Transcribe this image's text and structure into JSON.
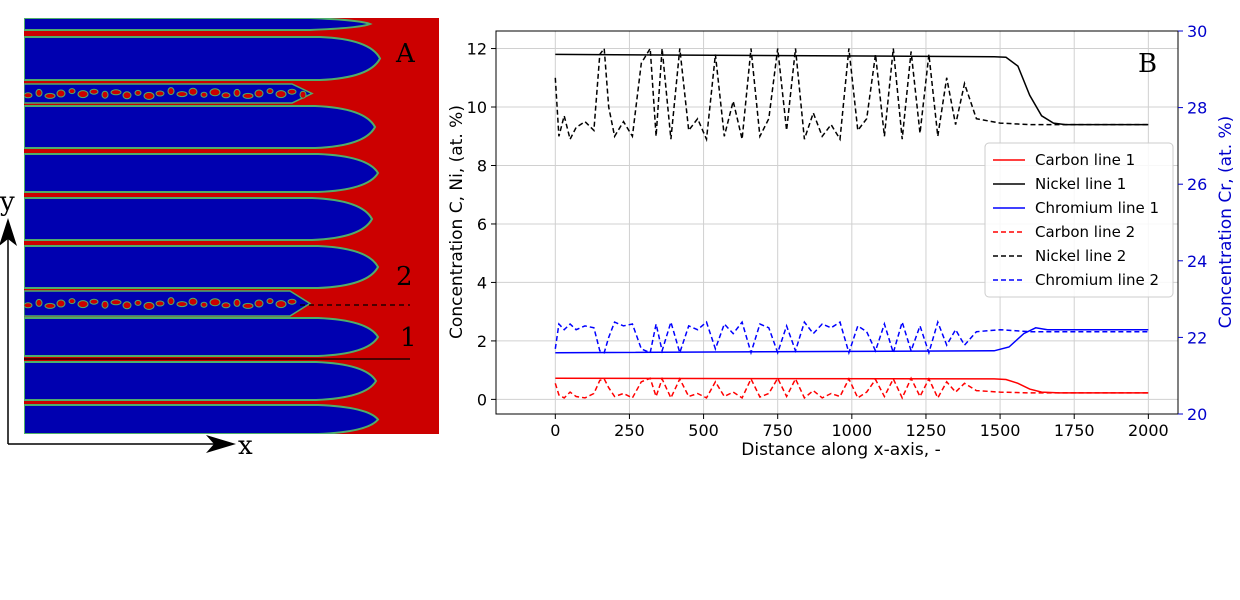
{
  "panel_a": {
    "letter": "A",
    "line2_label": "2",
    "line1_label": "1",
    "x_axis_label": "x",
    "y_axis_label": "y",
    "colors": {
      "matrix": "#0000b0",
      "phase": "#cc0000",
      "interface": "#4fae6a"
    }
  },
  "chart_data": {
    "type": "line",
    "panel_letter": "B",
    "xlabel": "Distance along x-axis, -",
    "ylabel": "Concentration C, Ni, (at. %)",
    "y2label": "Concentration Cr, (at. %)",
    "xlim": [
      -200,
      2100
    ],
    "ylim": [
      -0.5,
      12.6
    ],
    "y2lim": [
      20,
      30
    ],
    "xticks": [
      0,
      250,
      500,
      750,
      1000,
      1250,
      1500,
      1750,
      2000
    ],
    "yticks": [
      0,
      2,
      4,
      6,
      8,
      10,
      12
    ],
    "y2ticks": [
      20,
      22,
      24,
      26,
      28,
      30
    ],
    "grid": true,
    "legend_position": "right",
    "series": [
      {
        "name": "Carbon line 1",
        "color": "#ff0000",
        "style": "solid",
        "axis": "left",
        "x": [
          0,
          1480,
          1520,
          1560,
          1600,
          1640,
          1700,
          2000
        ],
        "y": [
          0.72,
          0.7,
          0.68,
          0.55,
          0.35,
          0.25,
          0.22,
          0.22
        ]
      },
      {
        "name": "Nickel line 1",
        "color": "#000000",
        "style": "solid",
        "axis": "left",
        "x": [
          0,
          1480,
          1520,
          1560,
          1600,
          1640,
          1680,
          1720,
          2000
        ],
        "y": [
          11.8,
          11.72,
          11.7,
          11.4,
          10.4,
          9.7,
          9.45,
          9.4,
          9.4
        ]
      },
      {
        "name": "Chromium line 1",
        "color": "#0000ff",
        "style": "solid",
        "axis": "right",
        "x": [
          0,
          1480,
          1530,
          1580,
          1620,
          1660,
          1700,
          2000
        ],
        "y": [
          21.6,
          21.65,
          21.75,
          22.1,
          22.25,
          22.2,
          22.2,
          22.2
        ]
      },
      {
        "name": "Carbon line 2",
        "color": "#ff0000",
        "style": "dashed",
        "axis": "left",
        "x": [
          0,
          12,
          30,
          50,
          70,
          100,
          130,
          150,
          165,
          180,
          200,
          230,
          260,
          290,
          320,
          340,
          360,
          390,
          420,
          450,
          480,
          510,
          540,
          570,
          600,
          630,
          660,
          690,
          720,
          750,
          780,
          810,
          840,
          870,
          900,
          930,
          960,
          990,
          1020,
          1050,
          1080,
          1110,
          1140,
          1170,
          1200,
          1230,
          1260,
          1290,
          1320,
          1350,
          1380,
          1420,
          1500,
          1600,
          1700,
          2000
        ],
        "y": [
          0.55,
          0.15,
          0.05,
          0.25,
          0.1,
          0.05,
          0.2,
          0.65,
          0.7,
          0.4,
          0.1,
          0.2,
          0.05,
          0.6,
          0.72,
          0.1,
          0.7,
          0.05,
          0.7,
          0.1,
          0.2,
          0.05,
          0.6,
          0.1,
          0.25,
          0.05,
          0.7,
          0.08,
          0.2,
          0.72,
          0.1,
          0.7,
          0.05,
          0.3,
          0.05,
          0.2,
          0.1,
          0.7,
          0.05,
          0.25,
          0.68,
          0.1,
          0.7,
          0.05,
          0.72,
          0.1,
          0.7,
          0.05,
          0.6,
          0.25,
          0.55,
          0.3,
          0.25,
          0.22,
          0.22,
          0.22
        ]
      },
      {
        "name": "Nickel line 2",
        "color": "#000000",
        "style": "dashed",
        "axis": "left",
        "x": [
          0,
          12,
          30,
          50,
          70,
          100,
          130,
          150,
          165,
          180,
          200,
          230,
          260,
          290,
          320,
          340,
          360,
          390,
          420,
          450,
          480,
          510,
          540,
          570,
          600,
          630,
          660,
          690,
          720,
          750,
          780,
          810,
          840,
          870,
          900,
          930,
          960,
          990,
          1020,
          1050,
          1080,
          1110,
          1140,
          1170,
          1200,
          1230,
          1260,
          1290,
          1320,
          1350,
          1380,
          1420,
          1500,
          1600,
          1700,
          2000
        ],
        "y": [
          11.0,
          9.0,
          9.7,
          8.9,
          9.3,
          9.5,
          9.2,
          11.8,
          12.0,
          10.0,
          9.0,
          9.5,
          9.0,
          11.5,
          12.0,
          9.0,
          12.0,
          8.9,
          12.0,
          9.2,
          9.6,
          8.9,
          11.8,
          9.0,
          10.2,
          8.9,
          12.0,
          9.0,
          9.6,
          12.0,
          9.2,
          12.0,
          8.9,
          9.8,
          9.0,
          9.4,
          8.9,
          12.0,
          9.2,
          9.6,
          11.8,
          9.0,
          12.0,
          8.9,
          11.9,
          9.1,
          11.8,
          9.0,
          11.0,
          9.4,
          10.8,
          9.6,
          9.45,
          9.4,
          9.4,
          9.4
        ]
      },
      {
        "name": "Chromium line 2",
        "color": "#0000ff",
        "style": "dashed",
        "axis": "right",
        "x": [
          0,
          12,
          30,
          50,
          70,
          100,
          130,
          150,
          165,
          180,
          200,
          230,
          260,
          290,
          320,
          340,
          360,
          390,
          420,
          450,
          480,
          510,
          540,
          570,
          600,
          630,
          660,
          690,
          720,
          750,
          780,
          810,
          840,
          870,
          900,
          930,
          960,
          990,
          1020,
          1050,
          1080,
          1110,
          1140,
          1170,
          1200,
          1230,
          1260,
          1290,
          1320,
          1350,
          1380,
          1420,
          1500,
          1600,
          1700,
          2000
        ],
        "y": [
          21.7,
          22.35,
          22.2,
          22.35,
          22.2,
          22.3,
          22.25,
          21.65,
          21.6,
          22.0,
          22.4,
          22.3,
          22.35,
          21.7,
          21.6,
          22.35,
          21.65,
          22.4,
          21.6,
          22.3,
          22.2,
          22.4,
          21.7,
          22.35,
          22.1,
          22.4,
          21.6,
          22.35,
          22.25,
          21.6,
          22.3,
          21.65,
          22.4,
          22.1,
          22.35,
          22.25,
          22.4,
          21.6,
          22.3,
          22.15,
          21.65,
          22.35,
          21.6,
          22.4,
          21.65,
          22.3,
          21.6,
          22.4,
          21.8,
          22.2,
          21.8,
          22.15,
          22.2,
          22.15,
          22.15,
          22.15
        ]
      }
    ]
  }
}
